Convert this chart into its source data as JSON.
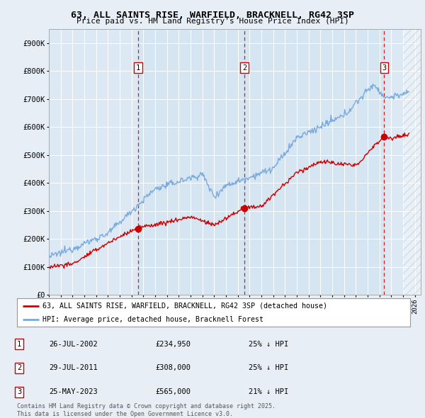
{
  "title": "63, ALL SAINTS RISE, WARFIELD, BRACKNELL, RG42 3SP",
  "subtitle": "Price paid vs. HM Land Registry's House Price Index (HPI)",
  "background_color": "#e8eef5",
  "plot_bg_color": "#dce8f4",
  "ylim": [
    0,
    950000
  ],
  "yticks": [
    0,
    100000,
    200000,
    300000,
    400000,
    500000,
    600000,
    700000,
    800000,
    900000
  ],
  "ytick_labels": [
    "£0",
    "£100K",
    "£200K",
    "£300K",
    "£400K",
    "£500K",
    "£600K",
    "£700K",
    "£800K",
    "£900K"
  ],
  "xlim_start": 1995.0,
  "xlim_end": 2026.5,
  "xticks": [
    1995,
    1996,
    1997,
    1998,
    1999,
    2000,
    2001,
    2002,
    2003,
    2004,
    2005,
    2006,
    2007,
    2008,
    2009,
    2010,
    2011,
    2012,
    2013,
    2014,
    2015,
    2016,
    2017,
    2018,
    2019,
    2020,
    2021,
    2022,
    2023,
    2024,
    2025,
    2026
  ],
  "sale_color": "#cc0000",
  "hpi_color": "#7aaadd",
  "sale_dates": [
    2002.57,
    2011.57,
    2023.4
  ],
  "sale_prices": [
    234950,
    308000,
    565000
  ],
  "sale_labels": [
    "1",
    "2",
    "3"
  ],
  "vline_color": "#cc0000",
  "legend_sale_label": "63, ALL SAINTS RISE, WARFIELD, BRACKNELL, RG42 3SP (detached house)",
  "legend_hpi_label": "HPI: Average price, detached house, Bracknell Forest",
  "table_data": [
    [
      "1",
      "26-JUL-2002",
      "£234,950",
      "25% ↓ HPI"
    ],
    [
      "2",
      "29-JUL-2011",
      "£308,000",
      "25% ↓ HPI"
    ],
    [
      "3",
      "25-MAY-2023",
      "£565,000",
      "21% ↓ HPI"
    ]
  ],
  "footnote": "Contains HM Land Registry data © Crown copyright and database right 2025.\nThis data is licensed under the Open Government Licence v3.0.",
  "grid_color": "#ffffff",
  "highlight_color": "#ddeeff"
}
